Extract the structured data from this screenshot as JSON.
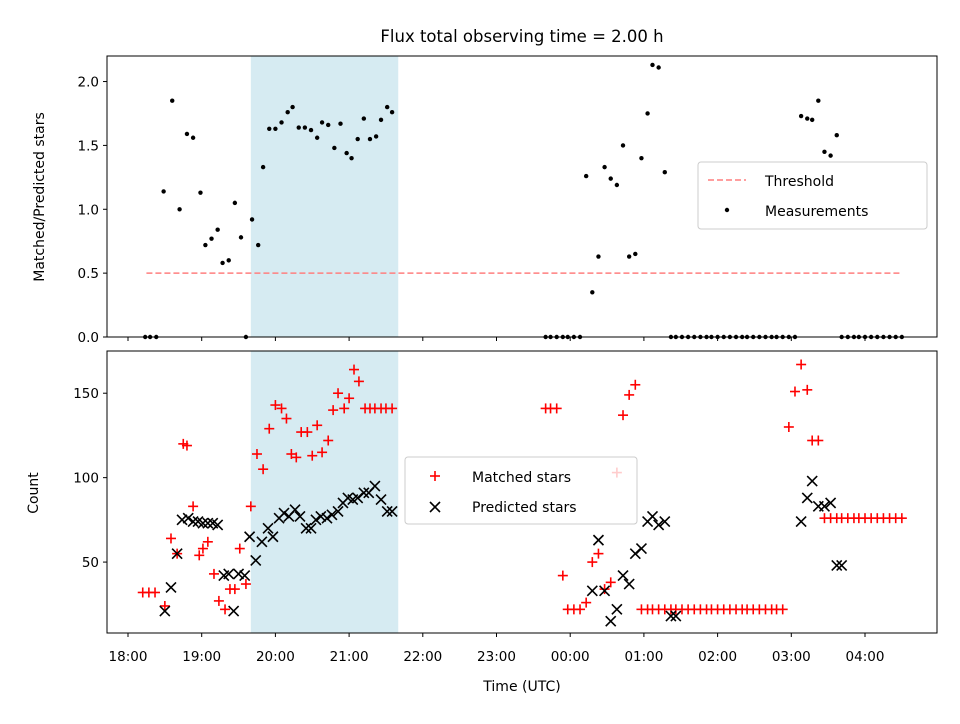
{
  "chart_data": [
    {
      "type": "scatter",
      "title": "Flux total observing time = 2.00 h",
      "ylabel": "Matched/Predicted stars",
      "xlabel": "",
      "xlim": [
        "18:00",
        "04:30"
      ],
      "ylim": [
        0,
        2.2
      ],
      "grid": false,
      "legend": "center-right",
      "shaded_interval": {
        "start": "19:40",
        "end": "21:40",
        "color": "#add8e6"
      },
      "yticks": [
        {
          "v": 0.0,
          "label": "0.0"
        },
        {
          "v": 0.5,
          "label": "0.5"
        },
        {
          "v": 1.0,
          "label": "1.0"
        },
        {
          "v": 1.5,
          "label": "1.5"
        },
        {
          "v": 2.0,
          "label": "2.0"
        }
      ],
      "series": [
        {
          "name": "Threshold",
          "style": "dashed-line",
          "color": "#ff7f7f",
          "x": [
            "18:15",
            "04:30"
          ],
          "y": [
            0.5,
            0.5
          ]
        },
        {
          "name": "Measurements",
          "style": "dots",
          "color": "#000000",
          "x": [
            "18:14",
            "18:18",
            "18:23",
            "18:29",
            "18:36",
            "18:42",
            "18:48",
            "18:53",
            "18:59",
            "19:03",
            "19:08",
            "19:13",
            "19:17",
            "19:22",
            "19:27",
            "19:32",
            "19:36",
            "19:41",
            "19:46",
            "19:50",
            "19:55",
            "20:00",
            "20:05",
            "20:10",
            "20:14",
            "20:19",
            "20:24",
            "20:29",
            "20:34",
            "20:38",
            "20:43",
            "20:48",
            "20:53",
            "20:58",
            "21:02",
            "21:07",
            "21:12",
            "21:17",
            "21:22",
            "21:26",
            "21:31",
            "21:35",
            "23:40",
            "23:44",
            "23:49",
            "23:54",
            "23:58",
            "00:03",
            "00:08",
            "00:13",
            "00:18",
            "00:23",
            "00:28",
            "00:33",
            "00:38",
            "00:43",
            "00:48",
            "00:53",
            "00:58",
            "01:03",
            "01:07",
            "01:12",
            "01:17",
            "01:22",
            "01:26",
            "01:31",
            "01:36",
            "01:41",
            "01:46",
            "01:51",
            "01:55",
            "02:00",
            "02:05",
            "02:10",
            "02:15",
            "02:20",
            "02:24",
            "02:29",
            "02:34",
            "02:39",
            "02:44",
            "02:48",
            "02:53",
            "02:58",
            "03:03",
            "03:08",
            "03:13",
            "03:17",
            "03:22",
            "03:27",
            "03:32",
            "03:37",
            "03:41",
            "03:46",
            "03:51",
            "03:55",
            "04:00",
            "04:05",
            "04:10",
            "04:15",
            "04:20",
            "04:25",
            "04:30"
          ],
          "y": [
            0.0,
            0.0,
            0.0,
            1.14,
            1.85,
            1.0,
            1.59,
            1.56,
            1.13,
            0.72,
            0.77,
            0.84,
            0.58,
            0.6,
            1.05,
            0.78,
            0.0,
            0.92,
            0.72,
            1.33,
            1.63,
            1.63,
            1.68,
            1.76,
            1.8,
            1.64,
            1.64,
            1.62,
            1.56,
            1.68,
            1.66,
            1.48,
            1.67,
            1.44,
            1.4,
            1.55,
            1.71,
            1.55,
            1.57,
            1.7,
            1.8,
            1.76,
            0.0,
            0.0,
            0.0,
            0.0,
            0.0,
            0.0,
            0.0,
            1.26,
            0.35,
            0.63,
            1.33,
            1.24,
            1.19,
            1.5,
            0.63,
            0.65,
            1.4,
            1.75,
            2.13,
            2.11,
            1.29,
            0.0,
            0.0,
            0.0,
            0.0,
            0.0,
            0.0,
            0.0,
            0.0,
            0.0,
            0.0,
            0.0,
            0.0,
            0.0,
            0.0,
            0.0,
            0.0,
            0.0,
            0.0,
            0.0,
            0.0,
            0.0,
            0.0,
            1.73,
            1.71,
            1.7,
            1.85,
            1.45,
            1.42,
            1.58,
            0.0,
            0.0,
            0.0,
            0.0,
            0.0,
            0.0,
            0.0,
            0.0,
            0.0,
            0.0,
            0.0
          ]
        }
      ]
    },
    {
      "type": "scatter",
      "title": "",
      "ylabel": "Count",
      "xlabel": "Time (UTC)",
      "xlim": [
        "18:00",
        "04:30"
      ],
      "ylim": [
        8,
        175
      ],
      "grid": false,
      "legend": "center",
      "shaded_interval": {
        "start": "19:40",
        "end": "21:40",
        "color": "#add8e6"
      },
      "xticks": [
        "18:00",
        "19:00",
        "20:00",
        "21:00",
        "22:00",
        "23:00",
        "00:00",
        "01:00",
        "02:00",
        "03:00",
        "04:00"
      ],
      "yticks": [
        {
          "v": 50,
          "label": "50"
        },
        {
          "v": 100,
          "label": "100"
        },
        {
          "v": 150,
          "label": "150"
        }
      ],
      "series": [
        {
          "name": "Matched stars",
          "style": "plus",
          "color": "#ff0000",
          "x": [
            "18:12",
            "18:17",
            "18:22",
            "18:30",
            "18:35",
            "18:40",
            "18:45",
            "18:48",
            "18:53",
            "18:58",
            "19:01",
            "19:05",
            "19:10",
            "19:14",
            "19:19",
            "19:23",
            "19:27",
            "19:31",
            "19:36",
            "19:40",
            "19:45",
            "19:50",
            "19:55",
            "20:00",
            "20:05",
            "20:09",
            "20:13",
            "20:17",
            "20:21",
            "20:26",
            "20:30",
            "20:34",
            "20:38",
            "20:43",
            "20:47",
            "20:51",
            "20:56",
            "21:00",
            "21:04",
            "21:08",
            "21:13",
            "21:17",
            "21:21",
            "21:26",
            "21:30",
            "21:35",
            "23:40",
            "23:44",
            "23:49",
            "23:54",
            "23:58",
            "00:03",
            "00:08",
            "00:13",
            "00:18",
            "00:23",
            "00:28",
            "00:33",
            "00:38",
            "00:43",
            "00:48",
            "00:53",
            "00:58",
            "01:03",
            "01:07",
            "01:12",
            "01:17",
            "01:22",
            "01:26",
            "01:31",
            "01:36",
            "01:41",
            "01:46",
            "01:51",
            "01:55",
            "02:00",
            "02:05",
            "02:10",
            "02:15",
            "02:20",
            "02:24",
            "02:29",
            "02:34",
            "02:39",
            "02:44",
            "02:48",
            "02:53",
            "02:58",
            "03:03",
            "03:08",
            "03:13",
            "03:17",
            "03:22",
            "03:27",
            "03:32",
            "03:37",
            "03:41",
            "03:46",
            "03:51",
            "03:55",
            "04:00",
            "04:05",
            "04:10",
            "04:15",
            "04:20",
            "04:25",
            "04:30"
          ],
          "y": [
            32,
            32,
            32,
            24,
            64,
            55,
            120,
            119,
            83,
            54,
            58,
            62,
            43,
            27,
            22,
            34,
            34,
            58,
            37,
            83,
            114,
            105,
            129,
            143,
            141,
            135,
            114,
            112,
            127,
            127,
            113,
            131,
            115,
            122,
            140,
            150,
            141,
            147,
            164,
            157,
            141,
            141,
            141,
            141,
            141,
            141,
            141,
            141,
            141,
            42,
            22,
            22,
            22,
            26,
            50,
            55,
            34,
            38,
            103,
            137,
            149,
            155,
            22,
            22,
            22,
            22,
            22,
            22,
            22,
            22,
            22,
            22,
            22,
            22,
            22,
            22,
            22,
            22,
            22,
            22,
            22,
            22,
            22,
            22,
            22,
            22,
            22,
            130,
            151,
            167,
            152,
            122,
            122,
            76,
            76,
            76,
            76,
            76,
            76,
            76,
            76,
            76,
            76,
            76,
            76,
            76,
            76
          ]
        },
        {
          "name": "Predicted stars",
          "style": "x",
          "color": "#000000",
          "x": [
            "18:30",
            "18:35",
            "18:40",
            "18:44",
            "18:49",
            "18:53",
            "18:57",
            "19:01",
            "19:05",
            "19:09",
            "19:13",
            "19:18",
            "19:22",
            "19:26",
            "19:30",
            "19:35",
            "19:39",
            "19:44",
            "19:49",
            "19:54",
            "19:58",
            "20:03",
            "20:07",
            "20:11",
            "20:16",
            "20:20",
            "20:25",
            "20:29",
            "20:33",
            "20:37",
            "20:42",
            "20:46",
            "20:51",
            "20:55",
            "20:59",
            "21:03",
            "21:07",
            "21:12",
            "21:16",
            "21:21",
            "21:26",
            "21:31",
            "21:35",
            "00:18",
            "00:23",
            "00:28",
            "00:33",
            "00:38",
            "00:43",
            "00:48",
            "00:53",
            "00:58",
            "01:03",
            "01:07",
            "01:12",
            "01:17",
            "01:22",
            "01:26",
            "03:08",
            "03:13",
            "03:17",
            "03:22",
            "03:27",
            "03:32",
            "03:37",
            "03:41"
          ],
          "y": [
            21,
            35,
            55,
            75,
            76,
            74,
            74,
            73,
            73,
            73,
            72,
            42,
            43,
            21,
            43,
            42,
            65,
            51,
            62,
            70,
            65,
            76,
            79,
            77,
            81,
            77,
            70,
            70,
            75,
            77,
            76,
            78,
            80,
            85,
            88,
            87,
            88,
            91,
            91,
            95,
            87,
            80,
            80,
            33,
            63,
            33,
            15,
            22,
            42,
            37,
            55,
            58,
            74,
            77,
            72,
            74,
            18,
            18,
            74,
            88,
            98,
            83,
            83,
            85,
            48,
            48
          ]
        }
      ]
    }
  ],
  "time_axis": {
    "label": "Time (UTC)"
  }
}
